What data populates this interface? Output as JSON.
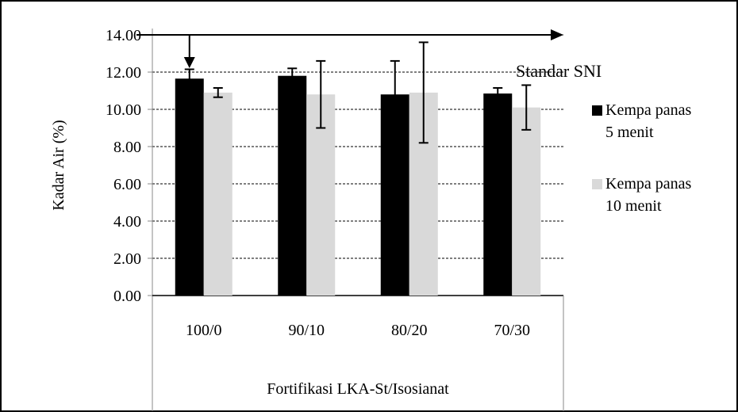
{
  "chart_data": {
    "type": "bar",
    "xlabel": "Fortifikasi LKA-St/Isosianat",
    "ylabel": "Kadar Air (%)",
    "ylim": [
      0,
      14
    ],
    "yticks": [
      "0.00",
      "2.00",
      "4.00",
      "6.00",
      "8.00",
      "10.00",
      "12.00",
      "14.00"
    ],
    "grid": "horizontal dashed",
    "categories": [
      "100/0",
      "90/10",
      "80/20",
      "70/30"
    ],
    "series": [
      {
        "name": "Kempa panas 5 menit",
        "legend_lines": [
          "Kempa panas",
          "5 menit"
        ],
        "color": "#000000",
        "values": [
          11.65,
          11.8,
          10.8,
          10.85
        ],
        "error": [
          0.5,
          0.4,
          1.8,
          0.3
        ]
      },
      {
        "name": "Kempa panas 10 menit",
        "legend_lines": [
          "Kempa panas",
          "10 menit"
        ],
        "color": "#d9d9d9",
        "values": [
          10.9,
          10.8,
          10.9,
          10.1
        ],
        "error": [
          0.25,
          1.8,
          2.7,
          1.2
        ]
      }
    ],
    "legend_position": "right",
    "annotation": {
      "text": "Standar SNI",
      "value": 14,
      "arrow_category": "100/0"
    }
  }
}
